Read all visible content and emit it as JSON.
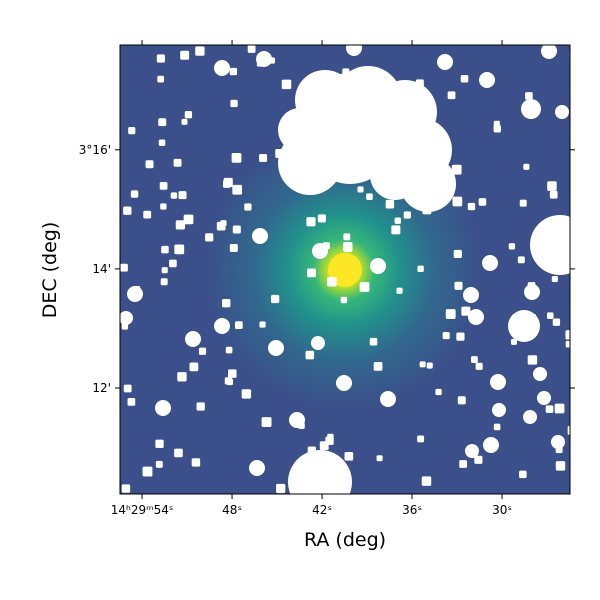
{
  "chart_data": {
    "type": "image",
    "x_label": "RA (deg)",
    "y_label": "DEC (deg)",
    "xlim": [
      55.47,
      25.47
    ],
    "ylim": [
      10.22,
      17.76
    ],
    "xticks": [
      {
        "value": 54,
        "label": "14ʰ29ᵐ54ˢ"
      },
      {
        "value": 48,
        "label": "48ˢ"
      },
      {
        "value": 42,
        "label": "42ˢ"
      },
      {
        "value": 36,
        "label": "36ˢ"
      },
      {
        "value": 30,
        "label": "30ˢ"
      }
    ],
    "yticks": [
      {
        "value": 16,
        "label": "3°16'"
      },
      {
        "value": 14,
        "label": "14'"
      },
      {
        "value": 12,
        "label": "12'"
      }
    ]
  }
}
